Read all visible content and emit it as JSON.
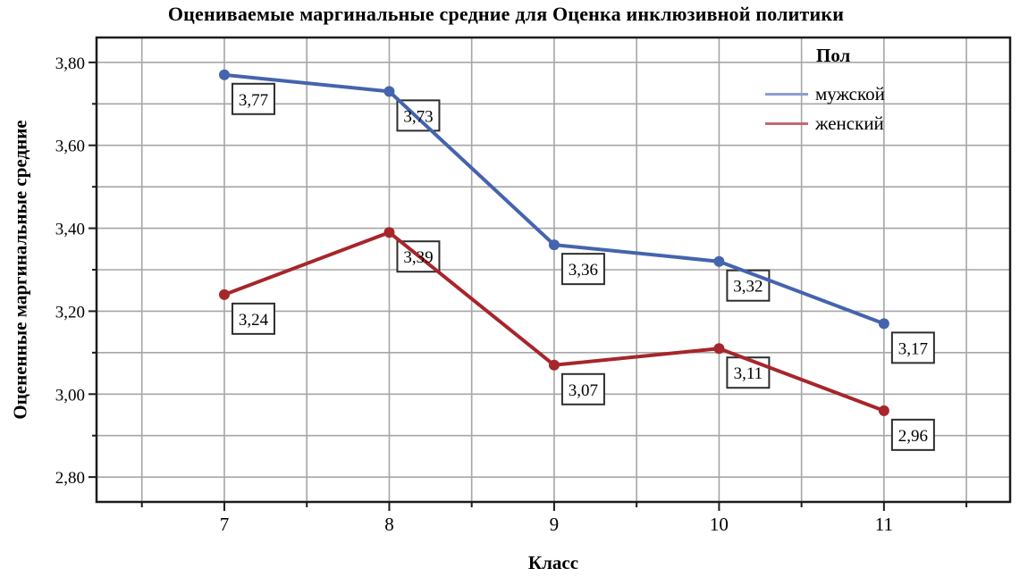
{
  "title": "Оцениваемые маргинальные средние для Оценка инклюзивной политики",
  "axes": {
    "x_label": "Класс",
    "y_label": "Оцененные маргинальные средние"
  },
  "legend": {
    "title": "Пол",
    "position": "top-right-inside",
    "items": [
      {
        "label": "мужской",
        "swatch_color": "#8c9ed1"
      },
      {
        "label": "женский",
        "swatch_color": "#c4696d"
      }
    ]
  },
  "chart_data": {
    "type": "line",
    "x": [
      7,
      8,
      9,
      10,
      11
    ],
    "x_tick_labels": [
      "7",
      "8",
      "9",
      "10",
      "11"
    ],
    "series": [
      {
        "name": "мужской",
        "color": "#4464ad",
        "values": [
          3.77,
          3.73,
          3.36,
          3.32,
          3.17
        ]
      },
      {
        "name": "женский",
        "color": "#a6262b",
        "values": [
          3.24,
          3.39,
          3.07,
          3.11,
          2.96
        ]
      }
    ],
    "data_labels": [
      "3,77",
      "3,73",
      "3,36",
      "3,32",
      "3,17",
      "3,24",
      "3,39",
      "3,07",
      "3,11",
      "2,96"
    ],
    "xlim": [
      6.225,
      11.765
    ],
    "ylim": [
      2.74,
      3.86
    ],
    "y_major_ticks": [
      "3,80",
      "3,60",
      "3,40",
      "3,20",
      "3,00",
      "2,80"
    ],
    "y_major_values": [
      3.8,
      3.6,
      3.4,
      3.2,
      3.0,
      2.8
    ],
    "y_minor_step": 0.1,
    "x_minor_step": 0.5,
    "grid": true,
    "decimal_separator": ",",
    "colors": {
      "grid": "#a6a6a6",
      "frame": "#1c1c1c",
      "label_box_fill": "#ffffff",
      "label_box_border": "#2e2e2e",
      "text": "#000000"
    }
  }
}
